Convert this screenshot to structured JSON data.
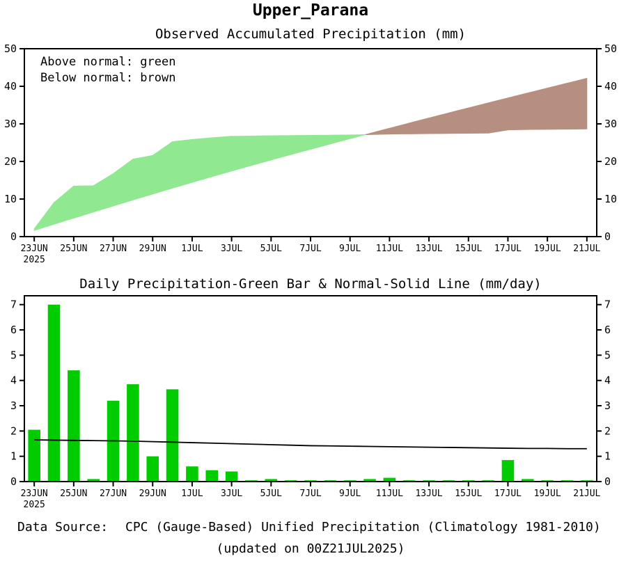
{
  "page_title": "Upper_Parana",
  "footer": {
    "source_label": "Data Source:",
    "source_text": "CPC (Gauge-Based) Unified Precipitation (Climatology 1981-2010)",
    "updated_text": "(updated on 00Z21JUL2025)"
  },
  "colors": {
    "above_normal_fill": "#90e890",
    "below_normal_fill": "#b68f80",
    "daily_bar_fill": "#00cc00",
    "normal_line": "#000000",
    "axis": "#000000",
    "source_label_color": "#ff5050"
  },
  "chart_data": [
    {
      "type": "area",
      "title": "Observed Accumulated Precipitation (mm)",
      "legend_note": [
        "Above normal: green",
        "Below normal: brown"
      ],
      "xlabel": "",
      "ylabel": "",
      "grid": false,
      "ylim": [
        0,
        50
      ],
      "yticks": [
        0,
        10,
        20,
        30,
        40,
        50
      ],
      "x": [
        "23JUN",
        "24JUN",
        "25JUN",
        "26JUN",
        "27JUN",
        "28JUN",
        "29JUN",
        "30JUN",
        "1JUL",
        "2JUL",
        "3JUL",
        "4JUL",
        "5JUL",
        "6JUL",
        "7JUL",
        "8JUL",
        "9JUL",
        "10JUL",
        "11JUL",
        "12JUL",
        "13JUL",
        "14JUL",
        "15JUL",
        "16JUL",
        "17JUL",
        "18JUL",
        "19JUL",
        "20JUL",
        "21JUL"
      ],
      "x_tick_labels": [
        "23JUN",
        "25JUN",
        "27JUN",
        "29JUN",
        "1JUL",
        "3JUL",
        "5JUL",
        "7JUL",
        "9JUL",
        "11JUL",
        "13JUL",
        "15JUL",
        "17JUL",
        "19JUL",
        "21JUL"
      ],
      "x_year_label": "2025",
      "series": [
        {
          "name": "Observed accumulated precipitation",
          "values": [
            2.05,
            9.05,
            13.45,
            13.55,
            16.75,
            20.6,
            21.6,
            25.25,
            25.85,
            26.3,
            26.7,
            26.75,
            26.85,
            26.9,
            26.95,
            27.0,
            27.05,
            27.15,
            27.3,
            27.35,
            27.4,
            27.45,
            27.5,
            27.55,
            28.4,
            28.5,
            28.55,
            28.6,
            28.65
          ]
        },
        {
          "name": "Normal accumulated precipitation (climatology)",
          "values": [
            1.65,
            3.29,
            4.92,
            6.54,
            8.15,
            9.75,
            11.33,
            12.89,
            14.43,
            15.95,
            17.45,
            18.93,
            20.39,
            21.83,
            23.25,
            24.66,
            26.06,
            27.45,
            28.83,
            30.2,
            31.56,
            32.91,
            34.25,
            35.58,
            36.9,
            38.21,
            39.52,
            40.82,
            42.12
          ]
        }
      ]
    },
    {
      "type": "bar",
      "title": "Daily Precipitation-Green Bar & Normal-Solid Line (mm/day)",
      "xlabel": "",
      "ylabel": "",
      "grid": false,
      "ylim": [
        0,
        7.35
      ],
      "yticks": [
        0,
        1,
        2,
        3,
        4,
        5,
        6,
        7
      ],
      "x": [
        "23JUN",
        "24JUN",
        "25JUN",
        "26JUN",
        "27JUN",
        "28JUN",
        "29JUN",
        "30JUN",
        "1JUL",
        "2JUL",
        "3JUL",
        "4JUL",
        "5JUL",
        "6JUL",
        "7JUL",
        "8JUL",
        "9JUL",
        "10JUL",
        "11JUL",
        "12JUL",
        "13JUL",
        "14JUL",
        "15JUL",
        "16JUL",
        "17JUL",
        "18JUL",
        "19JUL",
        "20JUL",
        "21JUL"
      ],
      "x_tick_labels": [
        "23JUN",
        "25JUN",
        "27JUN",
        "29JUN",
        "1JUL",
        "3JUL",
        "5JUL",
        "7JUL",
        "9JUL",
        "11JUL",
        "13JUL",
        "15JUL",
        "17JUL",
        "19JUL",
        "21JUL"
      ],
      "x_year_label": "2025",
      "series": [
        {
          "name": "Daily precipitation (green bar)",
          "type": "bar",
          "values": [
            2.05,
            7.0,
            4.4,
            0.1,
            3.2,
            3.85,
            1.0,
            3.65,
            0.6,
            0.45,
            0.4,
            0.05,
            0.1,
            0.05,
            0.05,
            0.05,
            0.05,
            0.1,
            0.15,
            0.05,
            0.05,
            0.05,
            0.05,
            0.05,
            0.85,
            0.1,
            0.05,
            0.05,
            0.05
          ]
        },
        {
          "name": "Normal precipitation (solid line)",
          "type": "line",
          "values": [
            1.65,
            1.64,
            1.63,
            1.62,
            1.61,
            1.6,
            1.58,
            1.56,
            1.54,
            1.52,
            1.5,
            1.48,
            1.46,
            1.44,
            1.42,
            1.41,
            1.4,
            1.39,
            1.38,
            1.37,
            1.36,
            1.35,
            1.34,
            1.33,
            1.32,
            1.31,
            1.31,
            1.3,
            1.3
          ]
        }
      ]
    }
  ]
}
